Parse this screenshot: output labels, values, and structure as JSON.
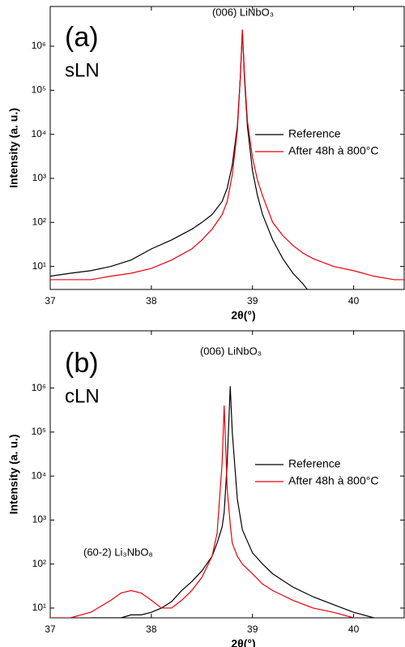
{
  "chart_data": [
    {
      "type": "line",
      "panel_label": "(a)",
      "sample": "sLN",
      "peak_label": "(006) LiNbO₃",
      "x_label": "2θ(°)",
      "y_label": "Intensity (a. u.)",
      "log_y": true,
      "xlim": [
        37,
        40.5
      ],
      "xticks": [
        37,
        38,
        39,
        40
      ],
      "ylim": [
        3,
        8000000
      ],
      "yticks": [
        {
          "value": 10,
          "label": "10¹"
        },
        {
          "value": 100,
          "label": "10²"
        },
        {
          "value": 1000,
          "label": "10³"
        },
        {
          "value": 10000,
          "label": "10⁴"
        },
        {
          "value": 100000,
          "label": "10⁵"
        },
        {
          "value": 1000000,
          "label": "10⁶"
        }
      ],
      "x": [
        37,
        37.2,
        37.4,
        37.6,
        37.8,
        38,
        38.2,
        38.4,
        38.5,
        38.6,
        38.7,
        38.75,
        38.8,
        38.85,
        38.88,
        38.9,
        38.92,
        38.95,
        39,
        39.05,
        39.1,
        39.2,
        39.3,
        39.4,
        39.5,
        39.6,
        39.8,
        40,
        40.2,
        40.4,
        40.5
      ],
      "series": [
        {
          "name": "Reference",
          "color": "#000000",
          "values": [
            6,
            7,
            8,
            10,
            14,
            25,
            40,
            70,
            100,
            150,
            300,
            600,
            2000,
            15000,
            200000,
            2300000,
            200000,
            15000,
            1500,
            400,
            150,
            40,
            15,
            7,
            4,
            2,
            2,
            2,
            2,
            2,
            2
          ]
        },
        {
          "name": "After 48h à 800°C",
          "color": "#e8000b",
          "values": [
            5,
            5,
            5,
            6,
            7,
            9,
            14,
            25,
            40,
            70,
            150,
            300,
            1200,
            12000,
            200000,
            2400000,
            250000,
            20000,
            3000,
            900,
            400,
            100,
            50,
            30,
            20,
            15,
            10,
            8,
            6,
            5,
            5
          ]
        }
      ]
    },
    {
      "type": "line",
      "panel_label": "(b)",
      "sample": "cLN",
      "peak_label": "(006) LiNbO₃",
      "phase_label": "(60-2) Li₃NbO₈",
      "x_label": "2θ(°)",
      "y_label": "Intensity (a. u.)",
      "log_y": true,
      "xlim": [
        37,
        40.5
      ],
      "xticks": [
        37,
        38,
        39,
        40
      ],
      "ylim": [
        6,
        20000000
      ],
      "yticks": [
        {
          "value": 10,
          "label": "10¹"
        },
        {
          "value": 100,
          "label": "10²"
        },
        {
          "value": 1000,
          "label": "10³"
        },
        {
          "value": 10000,
          "label": "10⁴"
        },
        {
          "value": 100000,
          "label": "10⁵"
        },
        {
          "value": 1000000,
          "label": "10⁶"
        }
      ],
      "x": [
        37,
        37.2,
        37.4,
        37.6,
        37.7,
        37.8,
        37.9,
        38,
        38.1,
        38.2,
        38.3,
        38.4,
        38.5,
        38.6,
        38.65,
        38.7,
        38.72,
        38.75,
        38.78,
        38.8,
        38.85,
        38.9,
        39,
        39.1,
        39.2,
        39.4,
        39.6,
        39.8,
        40,
        40.2,
        40.5
      ],
      "series": [
        {
          "name": "Reference",
          "color": "#000000",
          "values": [
            5,
            5,
            6,
            6,
            6,
            7,
            7,
            8,
            10,
            14,
            25,
            40,
            70,
            150,
            300,
            700,
            1500,
            20000,
            1100000,
            100000,
            3000,
            600,
            180,
            100,
            60,
            30,
            18,
            12,
            8,
            6,
            5
          ]
        },
        {
          "name": "After 48h à 800°C",
          "color": "#e8000b",
          "values": [
            6,
            6,
            8,
            15,
            22,
            25,
            22,
            15,
            10,
            10,
            15,
            25,
            50,
            150,
            500,
            20000,
            400000,
            5000,
            800,
            300,
            150,
            100,
            60,
            35,
            25,
            15,
            10,
            8,
            6,
            5,
            5
          ]
        }
      ]
    }
  ]
}
